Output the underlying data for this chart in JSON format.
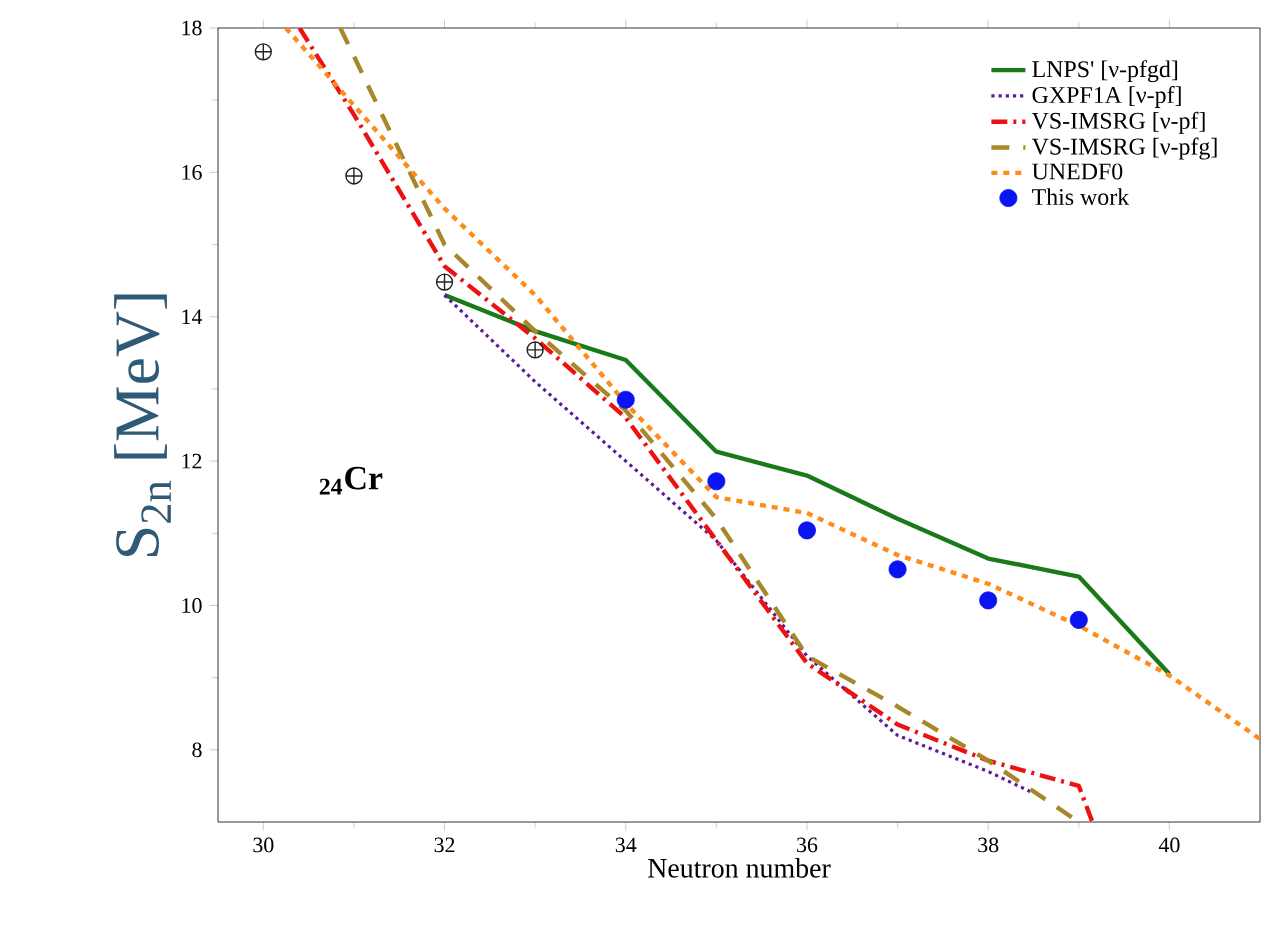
{
  "chart_data": {
    "type": "line",
    "xlabel": "Neutron number",
    "ylabel": "S$_{2n}$ [MeV]",
    "annotations": [
      "$_{24}$Cr"
    ],
    "xlim": [
      29.5,
      41
    ],
    "ylim": [
      7,
      18
    ],
    "xticks": [
      30,
      32,
      34,
      36,
      38,
      40
    ],
    "yticks": [
      8,
      10,
      12,
      14,
      16,
      18
    ],
    "legend": "top right",
    "grid": false,
    "series": [
      {
        "name": "LNPS' [ν-pfgd]",
        "color": "#1a7a1a",
        "line_style": "solid",
        "x": [
          32,
          33,
          34,
          35,
          36,
          37,
          38,
          39,
          40
        ],
        "values": [
          14.3,
          13.8,
          13.4,
          12.13,
          11.8,
          11.2,
          10.65,
          10.4,
          9.05
        ]
      },
      {
        "name": "GXPF1A [ν-pf]",
        "color": "#5a1a9a",
        "line_style": "dotted",
        "x": [
          32,
          33,
          34,
          35,
          36,
          37,
          38,
          38.5
        ],
        "values": [
          14.3,
          13.1,
          12.0,
          10.9,
          9.3,
          8.2,
          7.7,
          7.4
        ]
      },
      {
        "name": "VS-IMSRG [ν-pf]",
        "color": "#ee1111",
        "line_style": "dashdotted",
        "x": [
          30.4,
          31,
          32,
          33,
          34,
          35,
          36,
          37,
          38,
          39,
          39.15
        ],
        "values": [
          18,
          16.8,
          14.7,
          13.7,
          12.6,
          10.9,
          9.2,
          8.35,
          7.85,
          7.5,
          7.0
        ]
      },
      {
        "name": "VS-IMSRG [ν-pfg]",
        "color": "#a8862a",
        "line_style": "loosely dashed",
        "x": [
          30.85,
          32,
          33,
          34,
          35,
          36,
          37,
          38,
          39
        ],
        "values": [
          18,
          15.0,
          13.8,
          12.7,
          11.2,
          9.3,
          8.6,
          7.85,
          7.0
        ]
      },
      {
        "name": "UNEDF0",
        "color": "#ff8c1a",
        "line_style": "dashed",
        "x": [
          30.25,
          32,
          33,
          34,
          35,
          36,
          37,
          38,
          39,
          40,
          41
        ],
        "values": [
          18,
          15.5,
          14.3,
          12.8,
          11.5,
          11.28,
          10.7,
          10.3,
          9.72,
          9.03,
          8.15
        ]
      },
      {
        "name": "This work",
        "type": "scatter",
        "marker": "circle",
        "color": "#0a14f0",
        "x": [
          34,
          35,
          36,
          37,
          38,
          39
        ],
        "values": [
          12.85,
          11.72,
          11.04,
          10.5,
          10.07,
          9.8
        ]
      },
      {
        "type": "scatter",
        "marker": "cross",
        "color": "#222222",
        "x": [
          30,
          31,
          32,
          33
        ],
        "values": [
          17.67,
          15.95,
          14.48,
          13.54
        ]
      }
    ]
  }
}
